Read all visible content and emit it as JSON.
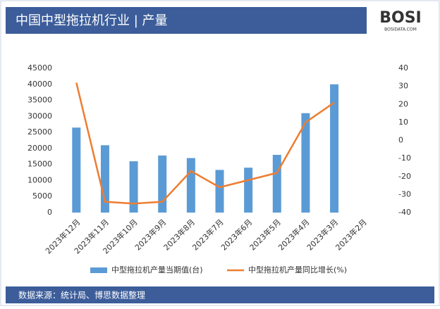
{
  "header": {
    "title": "中国中型拖拉机行业 | 产量",
    "logo": "BOSI",
    "logo_sub": "BOSIDATA.COM"
  },
  "chart_data": {
    "type": "combo",
    "categories": [
      "2023年12月",
      "2023年11月",
      "2023年10月",
      "2023年9月",
      "2023年8月",
      "2023年7月",
      "2023年6月",
      "2023年5月",
      "2023年4月",
      "2023年3月",
      "2023年2月"
    ],
    "series": [
      {
        "name": "中型拖拉机产量当期值(台)",
        "color": "#5b9bd5",
        "type": "bar",
        "values": [
          26500,
          21000,
          16000,
          17800,
          17000,
          13300,
          14000,
          18000,
          31000,
          40000,
          null
        ]
      },
      {
        "name": "中型拖拉机产量同比增长(%)",
        "color": "#ed7d31",
        "type": "line",
        "axis": "y2",
        "values": [
          32,
          -34,
          -35,
          -34,
          -17,
          -26,
          -22,
          -18,
          10,
          21,
          null
        ]
      }
    ],
    "ylim": [
      0,
      45000
    ],
    "yticks": [
      0,
      5000,
      10000,
      15000,
      20000,
      25000,
      30000,
      35000,
      40000,
      45000
    ],
    "y2lim": [
      -40,
      40
    ],
    "y2ticks": [
      -40,
      -30,
      -20,
      -10,
      0,
      10,
      20,
      30,
      40
    ],
    "legend": "bottom"
  },
  "footer": {
    "source": "数据来源：统计局、博思数据整理"
  }
}
